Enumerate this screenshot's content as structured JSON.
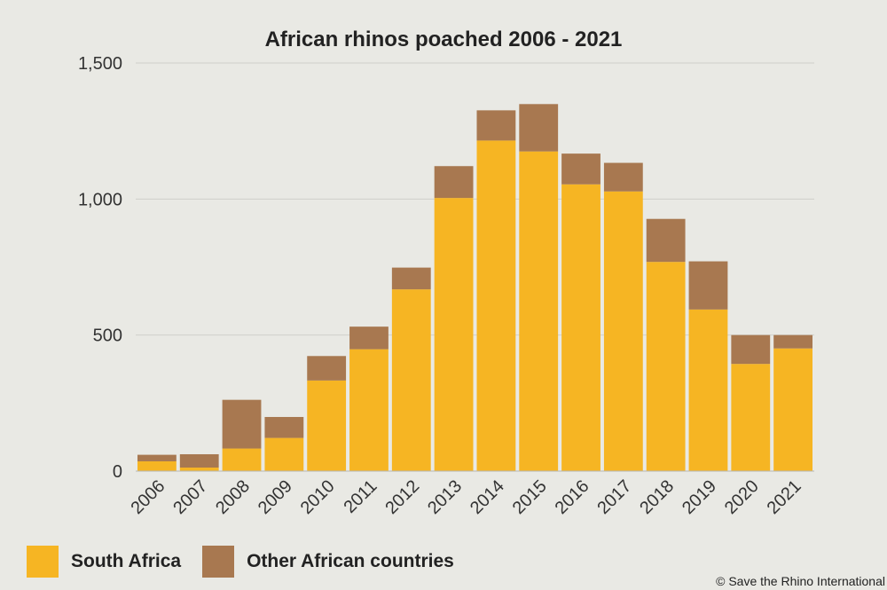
{
  "chart_data": {
    "type": "bar",
    "stacked": true,
    "title": "African rhinos poached 2006 - 2021",
    "xlabel": "",
    "ylabel": "",
    "ylim": [
      0,
      1500
    ],
    "yticks": [
      0,
      500,
      1000,
      1500
    ],
    "ytick_labels": [
      "0",
      "500",
      "1,000",
      "1,500"
    ],
    "grid": true,
    "categories": [
      "2006",
      "2007",
      "2008",
      "2009",
      "2010",
      "2011",
      "2012",
      "2013",
      "2014",
      "2015",
      "2016",
      "2017",
      "2018",
      "2019",
      "2020",
      "2021"
    ],
    "series": [
      {
        "name": "South Africa",
        "color": "#f6b523",
        "values": [
          36,
          13,
          83,
          122,
          333,
          448,
          668,
          1004,
          1215,
          1175,
          1054,
          1028,
          769,
          594,
          394,
          451
        ]
      },
      {
        "name": "Other African countries",
        "color": "#a87850",
        "values": [
          24,
          49,
          179,
          77,
          90,
          83,
          80,
          117,
          111,
          174,
          113,
          105,
          158,
          177,
          106,
          49
        ]
      }
    ]
  },
  "legend": {
    "items": [
      {
        "label": "South Africa",
        "color": "#f6b523"
      },
      {
        "label": "Other African countries",
        "color": "#a87850"
      }
    ]
  },
  "credit": "© Save the Rhino International"
}
